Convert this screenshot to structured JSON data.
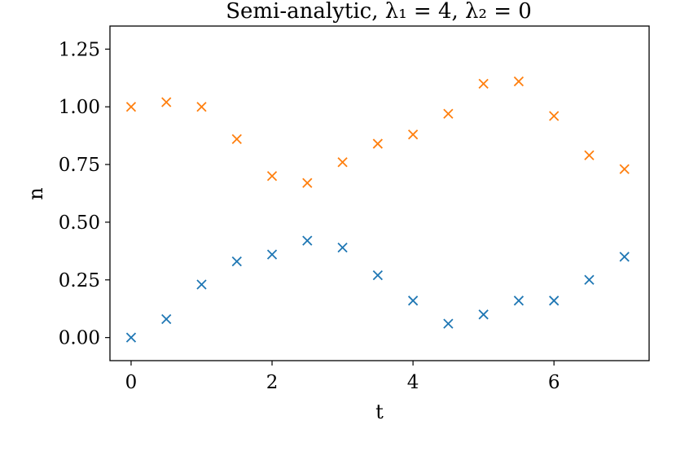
{
  "chart_data": {
    "type": "scatter",
    "title": "Semi-analytic, λ₁ = 4, λ₂ = 0",
    "xlabel": "t",
    "ylabel": "n",
    "xlim": [
      -0.3,
      7.35
    ],
    "ylim": [
      -0.1,
      1.35
    ],
    "xticks": [
      0,
      2,
      4,
      6
    ],
    "xtick_labels": [
      "0",
      "2",
      "4",
      "6"
    ],
    "yticks": [
      0.0,
      0.25,
      0.5,
      0.75,
      1.0,
      1.25
    ],
    "ytick_labels": [
      "0.00",
      "0.25",
      "0.50",
      "0.75",
      "1.00",
      "1.25"
    ],
    "grid": false,
    "marker": "x",
    "series": [
      {
        "color": "#1f77b4",
        "x": [
          0,
          0.5,
          1,
          1.5,
          2,
          2.5,
          3,
          3.5,
          4,
          4.5,
          5,
          5.5,
          6,
          6.5,
          7
        ],
        "y": [
          0.0,
          0.08,
          0.23,
          0.33,
          0.36,
          0.42,
          0.39,
          0.27,
          0.16,
          0.06,
          0.1,
          0.16,
          0.16,
          0.25,
          0.35
        ]
      },
      {
        "color": "#ff7f0e",
        "x": [
          0,
          0.5,
          1,
          1.5,
          2,
          2.5,
          3,
          3.5,
          4,
          4.5,
          5,
          5.5,
          6,
          6.5,
          7
        ],
        "y": [
          1.0,
          1.02,
          1.0,
          0.86,
          0.7,
          0.67,
          0.76,
          0.84,
          0.88,
          0.97,
          1.1,
          1.11,
          0.96,
          0.79,
          0.73
        ]
      }
    ]
  }
}
